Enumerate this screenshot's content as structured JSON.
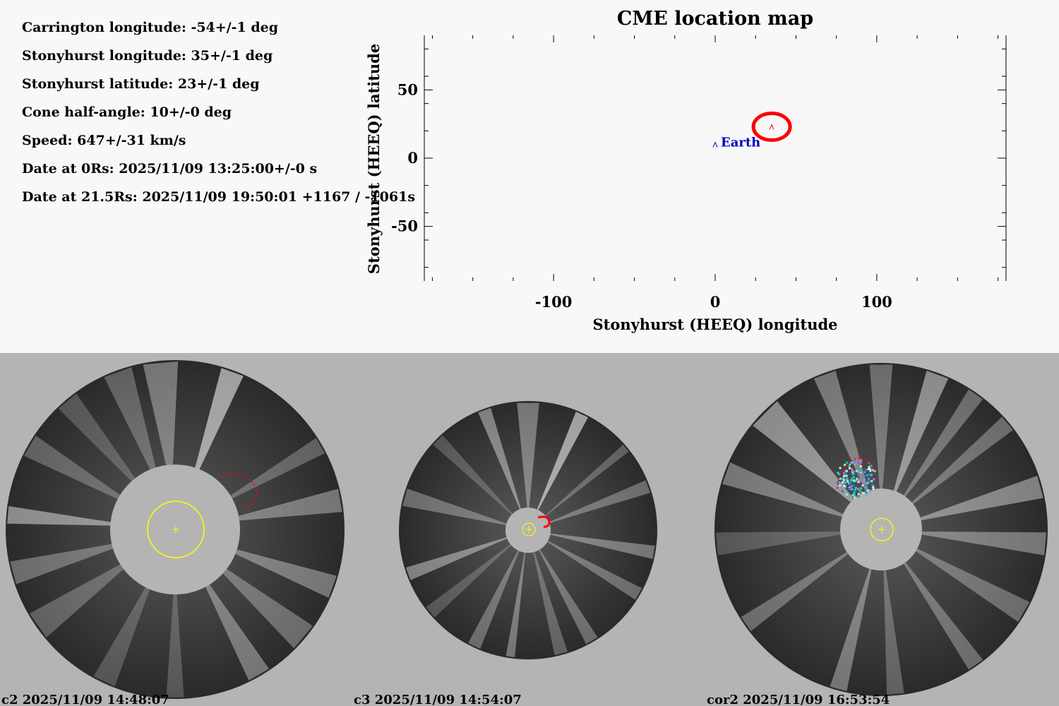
{
  "parameters": [
    "Carrington longitude: -54+/-1 deg",
    "Stonyhurst longitude: 35+/-1 deg",
    "Stonyhurst latitude: 23+/-1 deg",
    "Cone half-angle: 10+/-0 deg",
    "Speed: 647+/-31 km/s",
    "Date at 0Rs: 2025/11/09 13:25:00+/-0 s",
    "Date at 21.5Rs: 2025/11/09 19:50:01 +1167 / -1061s"
  ],
  "chart_data": {
    "type": "scatter",
    "title": "CME location map",
    "xlabel": "Stonyhurst (HEEQ) longitude",
    "ylabel": "Stonyhurst (HEEQ) latitude",
    "xlim": [
      -180,
      180
    ],
    "ylim": [
      -90,
      90
    ],
    "xticks": [
      -100,
      0,
      100
    ],
    "yticks": [
      50,
      0,
      -50
    ],
    "grid": false,
    "points": [
      {
        "name": "CME",
        "x": 35,
        "y": 23,
        "marker": "^",
        "color": "#ff0000",
        "circled": true
      },
      {
        "name": "Earth",
        "x": 0,
        "y": 10,
        "marker": "^",
        "color": "#0000cc",
        "label": "Earth"
      }
    ]
  },
  "images": [
    {
      "label": "c2 2025/11/09 14:48:07"
    },
    {
      "label": "c3 2025/11/09 14:54:07"
    },
    {
      "label": "cor2 2025/11/09 16:53:54"
    }
  ],
  "colors": {
    "cme": "#ff0000",
    "earth": "#0000cc",
    "sun_marker": "#ffff00",
    "occulter": "#b4b4b4"
  }
}
